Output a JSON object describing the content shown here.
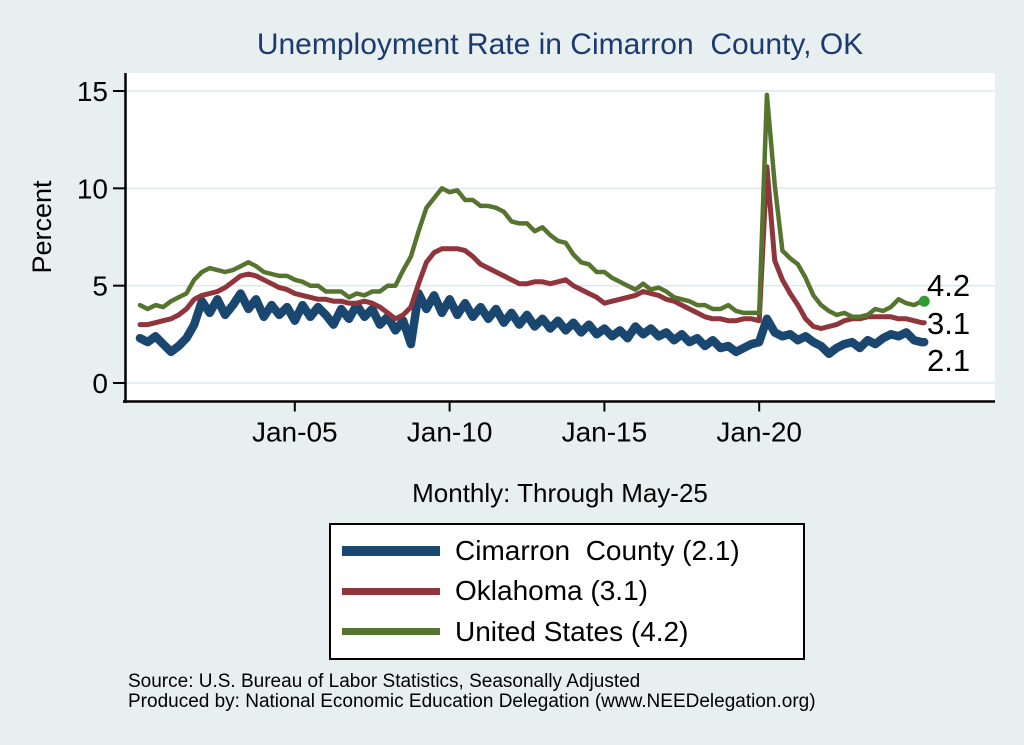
{
  "title": "Unemployment Rate in Cimarron  County, OK",
  "subtitle": "Monthly: Through May-25",
  "source": {
    "line1": "Source: U.S. Bureau of Labor Statistics, Seasonally Adjusted",
    "line2": "Produced by: National Economic Education Delegation (www.NEEDelegation.org)"
  },
  "colors": {
    "background": "#e8eff1",
    "plot_background": "#ffffff",
    "title_text": "#1c3a6e",
    "axis": "#000000",
    "gridline": "#dce9ee",
    "end_dot": "#2f9e2f",
    "cimarron_navy": "#1a476f",
    "oklahoma_maroon": "#90353b",
    "us_olive": "#55752f"
  },
  "chart_data": {
    "type": "line",
    "title": "Unemployment Rate in Cimarron  County, OK",
    "subtitle": "Monthly: Through May-25",
    "xlabel": "",
    "ylabel": "Percent",
    "ylim": [
      0,
      15
    ],
    "yticks": [
      0,
      5,
      10,
      15
    ],
    "xticks": [
      {
        "label": "Jan-05",
        "t": 2005.0
      },
      {
        "label": "Jan-10",
        "t": 2010.0
      },
      {
        "label": "Jan-15",
        "t": 2015.0
      },
      {
        "label": "Jan-20",
        "t": 2020.0
      }
    ],
    "grid": "horizontal",
    "legend_position": "bottom",
    "x_unit": "decimal-year, monthly data Jan-2000 through May-2025 (quarterly samples)",
    "x": [
      2000.0,
      2000.25,
      2000.5,
      2000.75,
      2001.0,
      2001.25,
      2001.5,
      2001.75,
      2002.0,
      2002.25,
      2002.5,
      2002.75,
      2003.0,
      2003.25,
      2003.5,
      2003.75,
      2004.0,
      2004.25,
      2004.5,
      2004.75,
      2005.0,
      2005.25,
      2005.5,
      2005.75,
      2006.0,
      2006.25,
      2006.5,
      2006.75,
      2007.0,
      2007.25,
      2007.5,
      2007.75,
      2008.0,
      2008.25,
      2008.5,
      2008.75,
      2009.0,
      2009.25,
      2009.5,
      2009.75,
      2010.0,
      2010.25,
      2010.5,
      2010.75,
      2011.0,
      2011.25,
      2011.5,
      2011.75,
      2012.0,
      2012.25,
      2012.5,
      2012.75,
      2013.0,
      2013.25,
      2013.5,
      2013.75,
      2014.0,
      2014.25,
      2014.5,
      2014.75,
      2015.0,
      2015.25,
      2015.5,
      2015.75,
      2016.0,
      2016.25,
      2016.5,
      2016.75,
      2017.0,
      2017.25,
      2017.5,
      2017.75,
      2018.0,
      2018.25,
      2018.5,
      2018.75,
      2019.0,
      2019.25,
      2019.5,
      2019.75,
      2020.0,
      2020.25,
      2020.5,
      2020.75,
      2021.0,
      2021.25,
      2021.5,
      2021.75,
      2022.0,
      2022.25,
      2022.5,
      2022.75,
      2023.0,
      2023.25,
      2023.5,
      2023.75,
      2024.0,
      2024.25,
      2024.5,
      2024.75,
      2025.0,
      2025.25,
      2025.33
    ],
    "series": [
      {
        "name": "Cimarron  County",
        "legend_label": "Cimarron  County (2.1)",
        "end_label": "2.1",
        "latest_value": 2.1,
        "color": "#1a476f",
        "values": [
          2.3,
          2.1,
          2.4,
          2.0,
          1.6,
          1.9,
          2.3,
          3.0,
          4.2,
          3.6,
          4.3,
          3.5,
          4.0,
          4.6,
          3.8,
          4.3,
          3.4,
          4.0,
          3.5,
          3.9,
          3.2,
          4.0,
          3.4,
          3.9,
          3.5,
          3.0,
          3.8,
          3.3,
          4.0,
          3.4,
          3.8,
          3.0,
          3.4,
          2.7,
          3.2,
          2.0,
          4.6,
          3.8,
          4.5,
          3.6,
          4.3,
          3.5,
          4.1,
          3.4,
          3.9,
          3.3,
          3.8,
          3.1,
          3.6,
          3.0,
          3.5,
          2.9,
          3.3,
          2.8,
          3.2,
          2.7,
          3.1,
          2.6,
          3.0,
          2.5,
          2.8,
          2.4,
          2.7,
          2.3,
          2.9,
          2.5,
          2.8,
          2.4,
          2.6,
          2.2,
          2.5,
          2.1,
          2.3,
          1.9,
          2.2,
          1.8,
          1.9,
          1.6,
          1.8,
          2.0,
          2.1,
          3.3,
          2.6,
          2.4,
          2.5,
          2.2,
          2.4,
          2.1,
          1.9,
          1.5,
          1.8,
          2.0,
          2.1,
          1.8,
          2.2,
          2.0,
          2.3,
          2.5,
          2.4,
          2.6,
          2.2,
          2.1,
          2.1
        ]
      },
      {
        "name": "Oklahoma",
        "legend_label": "Oklahoma (3.1)",
        "end_label": "3.1",
        "latest_value": 3.1,
        "color": "#90353b",
        "values": [
          3.0,
          3.0,
          3.1,
          3.2,
          3.3,
          3.5,
          3.8,
          4.3,
          4.5,
          4.6,
          4.7,
          4.9,
          5.2,
          5.5,
          5.6,
          5.5,
          5.3,
          5.1,
          4.9,
          4.8,
          4.6,
          4.5,
          4.4,
          4.3,
          4.3,
          4.2,
          4.2,
          4.1,
          4.1,
          4.2,
          4.1,
          3.9,
          3.6,
          3.3,
          3.5,
          3.9,
          5.1,
          6.2,
          6.7,
          6.9,
          6.9,
          6.9,
          6.8,
          6.5,
          6.1,
          5.9,
          5.7,
          5.5,
          5.3,
          5.1,
          5.1,
          5.2,
          5.2,
          5.1,
          5.2,
          5.3,
          5.0,
          4.8,
          4.6,
          4.4,
          4.1,
          4.2,
          4.3,
          4.4,
          4.5,
          4.7,
          4.6,
          4.5,
          4.3,
          4.2,
          4.0,
          3.8,
          3.6,
          3.4,
          3.3,
          3.3,
          3.2,
          3.2,
          3.3,
          3.3,
          3.2,
          11.1,
          6.3,
          5.3,
          4.6,
          4.0,
          3.3,
          2.9,
          2.8,
          2.9,
          3.0,
          3.2,
          3.3,
          3.3,
          3.4,
          3.4,
          3.4,
          3.4,
          3.3,
          3.3,
          3.2,
          3.1,
          3.1
        ]
      },
      {
        "name": "United States",
        "legend_label": "United States (4.2)",
        "end_label": "4.2",
        "latest_value": 4.2,
        "color": "#55752f",
        "end_marker": true,
        "values": [
          4.0,
          3.8,
          4.0,
          3.9,
          4.2,
          4.4,
          4.6,
          5.3,
          5.7,
          5.9,
          5.8,
          5.7,
          5.8,
          6.0,
          6.2,
          6.0,
          5.7,
          5.6,
          5.5,
          5.5,
          5.3,
          5.2,
          5.0,
          5.0,
          4.7,
          4.7,
          4.7,
          4.4,
          4.6,
          4.5,
          4.7,
          4.7,
          5.0,
          5.0,
          5.8,
          6.5,
          7.8,
          9.0,
          9.5,
          10.0,
          9.8,
          9.9,
          9.4,
          9.4,
          9.1,
          9.1,
          9.0,
          8.8,
          8.3,
          8.2,
          8.2,
          7.8,
          8.0,
          7.6,
          7.3,
          7.2,
          6.6,
          6.2,
          6.1,
          5.7,
          5.7,
          5.4,
          5.2,
          5.0,
          4.8,
          5.1,
          4.8,
          4.9,
          4.7,
          4.4,
          4.3,
          4.2,
          4.0,
          4.0,
          3.8,
          3.8,
          4.0,
          3.7,
          3.6,
          3.6,
          3.6,
          14.8,
          10.2,
          6.8,
          6.4,
          6.1,
          5.4,
          4.5,
          4.0,
          3.7,
          3.5,
          3.6,
          3.4,
          3.4,
          3.5,
          3.8,
          3.7,
          3.9,
          4.3,
          4.1,
          4.0,
          4.2,
          4.2
        ]
      }
    ]
  }
}
